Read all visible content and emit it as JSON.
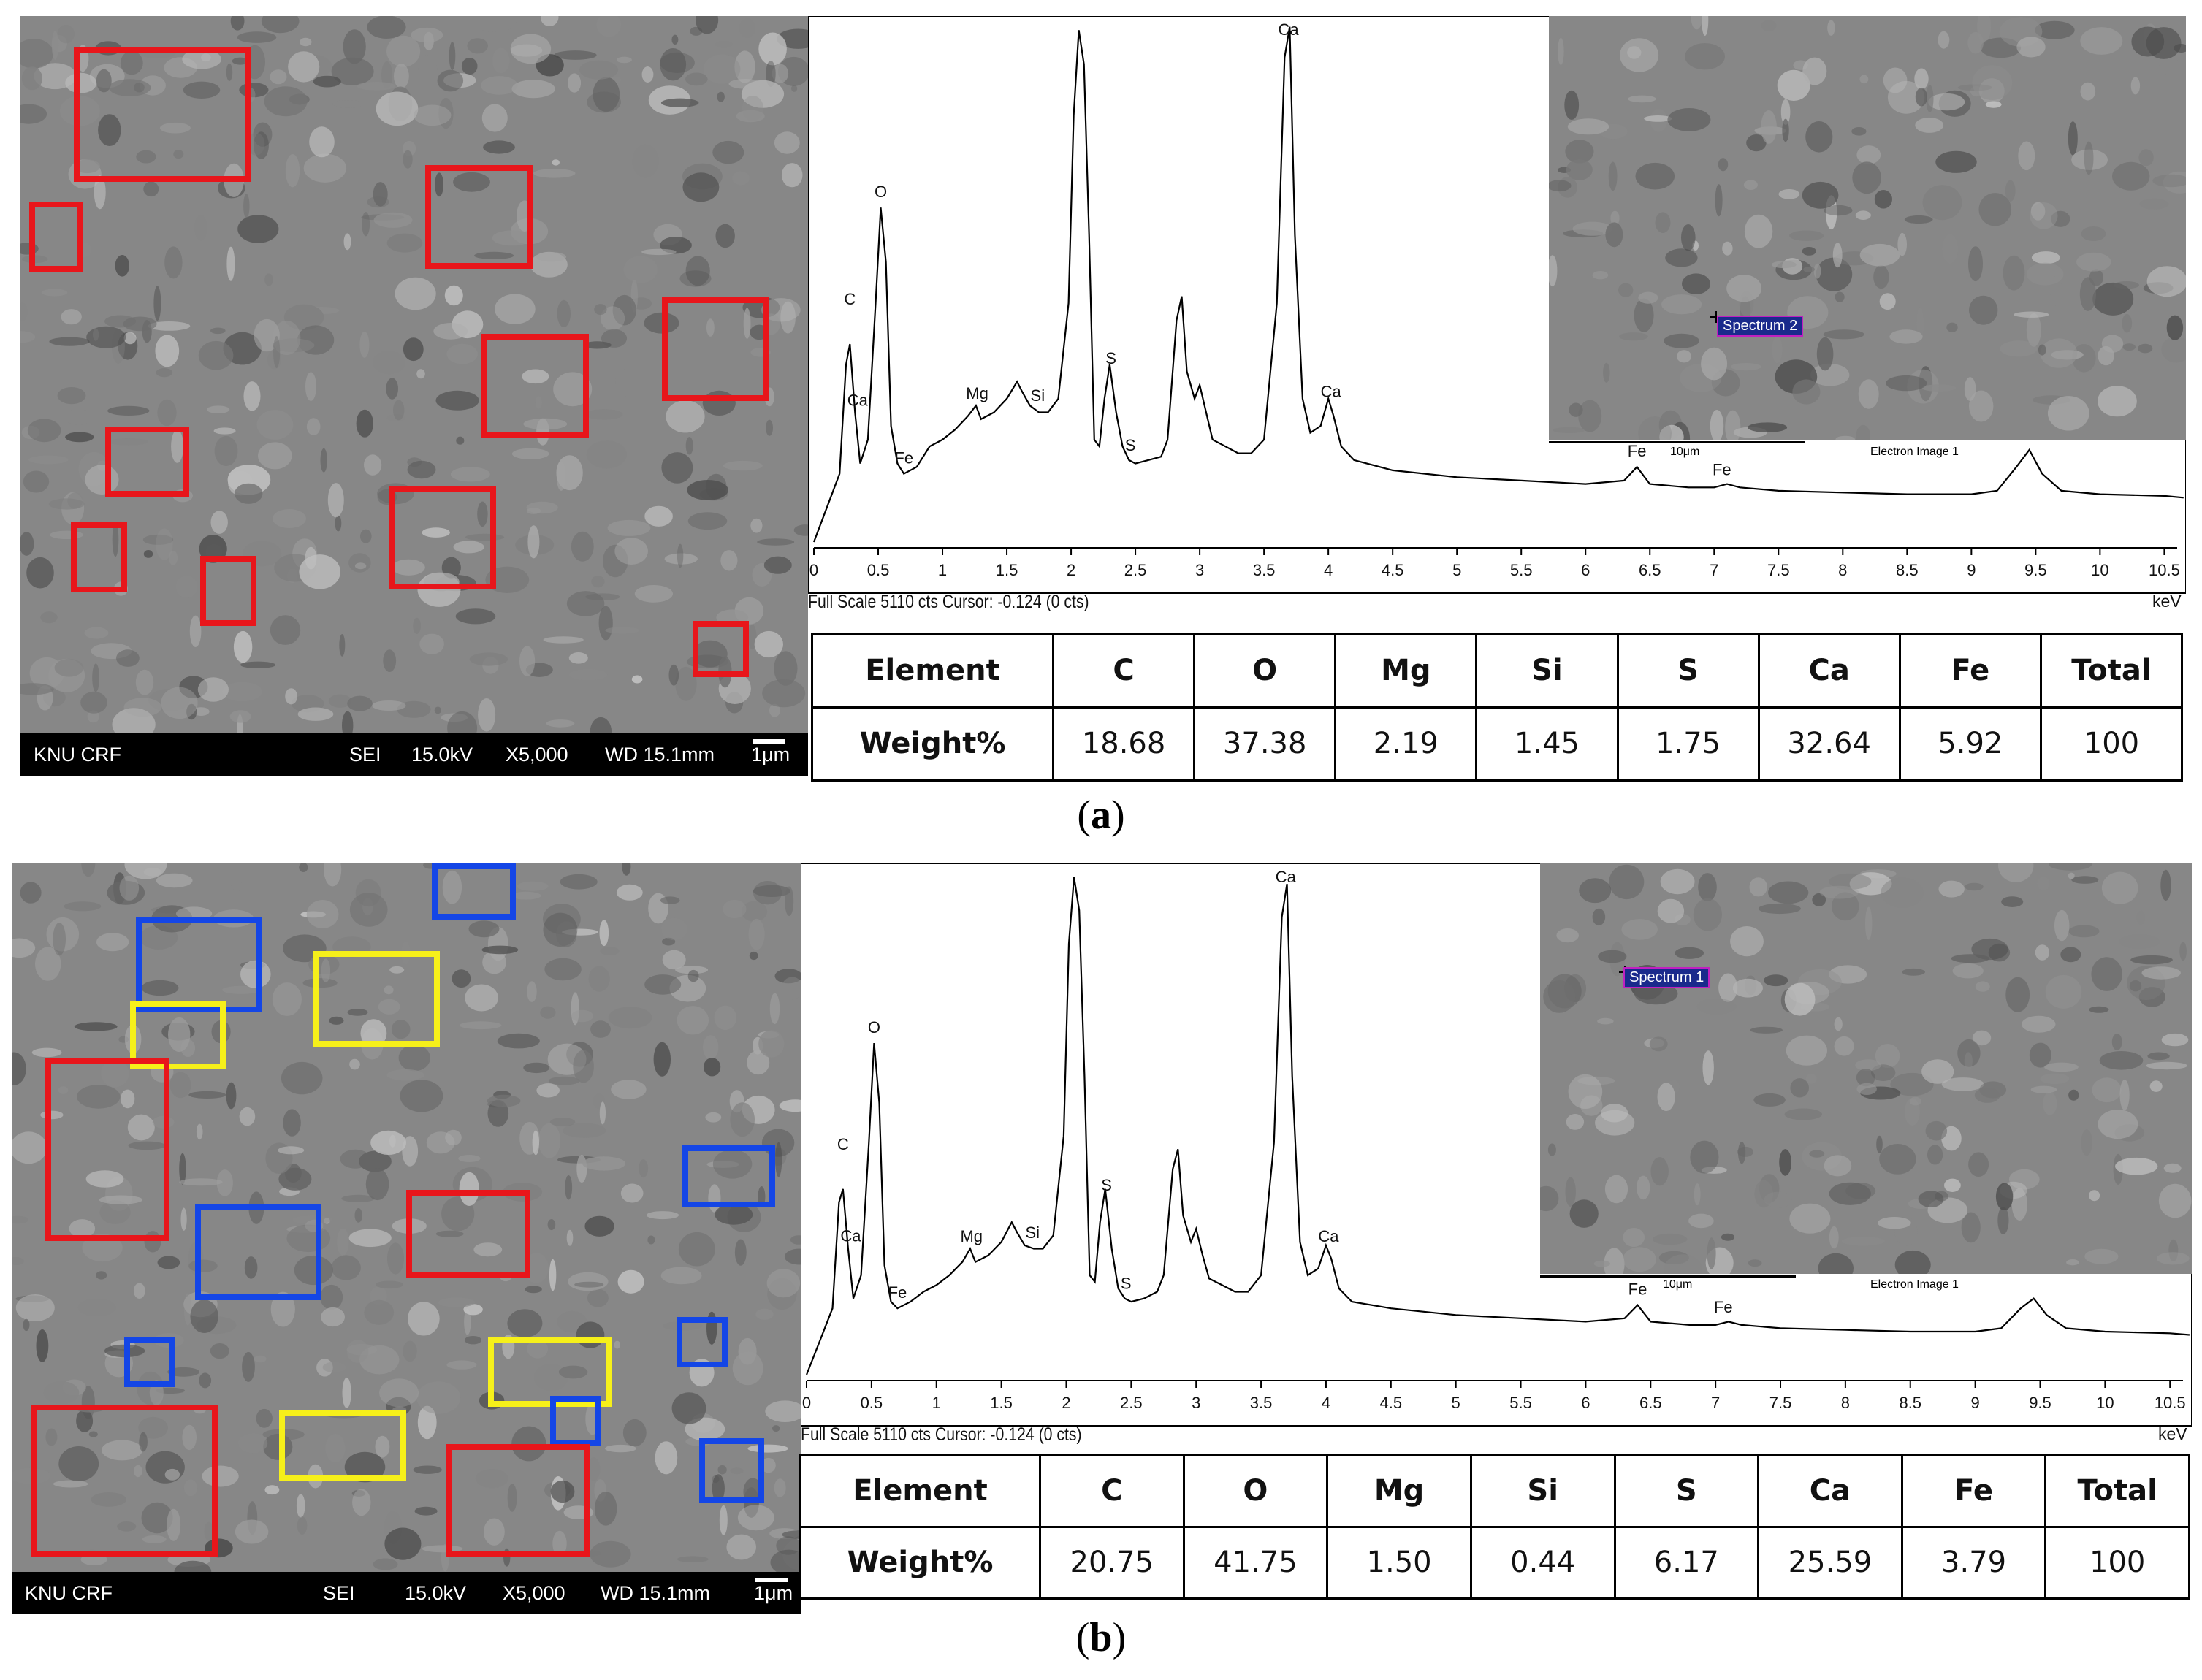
{
  "panels": [
    {
      "label_open": "(",
      "label_letter": "a",
      "label_close": ")",
      "sem_bar": {
        "lab": "KNU CRF",
        "mode": "SEI",
        "voltage": "15.0kV",
        "magnification": "X5,000",
        "wd": "WD 15.1mm",
        "scale": "1μm"
      },
      "boxes": [
        {
          "color": "red"
        },
        {
          "color": "red"
        },
        {
          "color": "red"
        },
        {
          "color": "red"
        },
        {
          "color": "red"
        },
        {
          "color": "red"
        },
        {
          "color": "red"
        },
        {
          "color": "red"
        },
        {
          "color": "red"
        },
        {
          "color": "red"
        },
        {
          "color": "red"
        }
      ],
      "chart_data": {
        "type": "line",
        "xlabel": "keV",
        "xlim": [
          0,
          10.6
        ],
        "x_ticks": [
          "0",
          "0.5",
          "1",
          "1.5",
          "2",
          "2.5",
          "3",
          "3.5",
          "4",
          "4.5",
          "5",
          "5.5",
          "6",
          "6.5",
          "7",
          "7.5",
          "8",
          "8.5",
          "9",
          "9.5",
          "10",
          "10.5"
        ],
        "series": [
          {
            "x": [
              0,
              0.1,
              0.2,
              0.25,
              0.28,
              0.32,
              0.36,
              0.42,
              0.48,
              0.52,
              0.56,
              0.6,
              0.65,
              0.7,
              0.8,
              0.9,
              1.0,
              1.1,
              1.2,
              1.26,
              1.3,
              1.4,
              1.5,
              1.58,
              1.62,
              1.68,
              1.75,
              1.82,
              1.9,
              1.98,
              2.02,
              2.06,
              2.1,
              2.14,
              2.18,
              2.22,
              2.26,
              2.3,
              2.35,
              2.4,
              2.45,
              2.5,
              2.6,
              2.7,
              2.75,
              2.82,
              2.86,
              2.9,
              2.96,
              3.0,
              3.05,
              3.1,
              3.2,
              3.3,
              3.4,
              3.5,
              3.6,
              3.66,
              3.7,
              3.74,
              3.8,
              3.86,
              3.94,
              4.0,
              4.04,
              4.1,
              4.2,
              4.5,
              5,
              5.5,
              6,
              6.3,
              6.4,
              6.5,
              6.8,
              7.0,
              7.1,
              7.2,
              7.5,
              8,
              8.5,
              9,
              9.2,
              9.35,
              9.45,
              9.55,
              9.7,
              10,
              10.5,
              10.65
            ],
            "y": [
              0,
              100,
              200,
              520,
              580,
              380,
              230,
              300,
              700,
              980,
              820,
              340,
              230,
              200,
              220,
              280,
              300,
              330,
              370,
              400,
              360,
              380,
              420,
              470,
              440,
              400,
              380,
              380,
              420,
              700,
              1250,
              1500,
              1400,
              900,
              300,
              280,
              420,
              520,
              380,
              280,
              240,
              230,
              240,
              250,
              300,
              650,
              720,
              500,
              420,
              460,
              380,
              300,
              280,
              260,
              260,
              300,
              700,
              1420,
              1510,
              900,
              420,
              320,
              340,
              420,
              370,
              280,
              240,
              210,
              190,
              180,
              170,
              180,
              220,
              170,
              160,
              160,
              170,
              160,
              150,
              145,
              140,
              140,
              150,
              220,
              270,
              200,
              150,
              140,
              135,
              130
            ]
          }
        ],
        "peak_labels": [
          {
            "text": "C",
            "x": 0.28
          },
          {
            "text": "Ca",
            "x": 0.34
          },
          {
            "text": "O",
            "x": 0.52
          },
          {
            "text": "Fe",
            "x": 0.7
          },
          {
            "text": "Mg",
            "x": 1.27
          },
          {
            "text": "Si",
            "x": 1.74
          },
          {
            "text": "S",
            "x": 2.31
          },
          {
            "text": "S",
            "x": 2.46
          },
          {
            "text": "Ca",
            "x": 3.69
          },
          {
            "text": "Ca",
            "x": 4.02
          },
          {
            "text": "Fe",
            "x": 6.4
          },
          {
            "text": "Fe",
            "x": 7.06
          }
        ]
      },
      "full_scale_text": "Full Scale 5110 cts Cursor: -0.124 (0 cts)",
      "kev_label": "keV",
      "inset": {
        "spectrum_tag": "Spectrum 2",
        "scale": "10μm",
        "caption": "Electron Image 1"
      },
      "table": {
        "header": [
          "Element",
          "C",
          "O",
          "Mg",
          "Si",
          "S",
          "Ca",
          "Fe",
          "Total"
        ],
        "row": [
          "Weight%",
          "18.68",
          "37.38",
          "2.19",
          "1.45",
          "1.75",
          "32.64",
          "5.92",
          "100"
        ]
      }
    },
    {
      "label_open": "(",
      "label_letter": "b",
      "label_close": ")",
      "sem_bar": {
        "lab": "KNU CRF",
        "mode": "SEI",
        "voltage": "15.0kV",
        "magnification": "X5,000",
        "wd": "WD 15.1mm",
        "scale": "1μm"
      },
      "boxes": [
        {
          "color": "blue"
        },
        {
          "color": "blue"
        },
        {
          "color": "yellow"
        },
        {
          "color": "yellow"
        },
        {
          "color": "red"
        },
        {
          "color": "blue"
        },
        {
          "color": "blue"
        },
        {
          "color": "red"
        },
        {
          "color": "blue"
        },
        {
          "color": "blue"
        },
        {
          "color": "yellow"
        },
        {
          "color": "red"
        },
        {
          "color": "yellow"
        },
        {
          "color": "blue"
        },
        {
          "color": "red"
        },
        {
          "color": "blue"
        }
      ],
      "chart_data": {
        "type": "line",
        "xlabel": "keV",
        "xlim": [
          0,
          10.6
        ],
        "x_ticks": [
          "0",
          "0.5",
          "1",
          "1.5",
          "2",
          "2.5",
          "3",
          "3.5",
          "4",
          "4.5",
          "5",
          "5.5",
          "6",
          "6.5",
          "7",
          "7.5",
          "8",
          "8.5",
          "9",
          "9.5",
          "10",
          "10.5"
        ],
        "series": [
          {
            "x": [
              0,
              0.1,
              0.2,
              0.25,
              0.28,
              0.32,
              0.36,
              0.42,
              0.48,
              0.52,
              0.56,
              0.6,
              0.65,
              0.7,
              0.8,
              0.9,
              1.0,
              1.1,
              1.2,
              1.26,
              1.3,
              1.4,
              1.5,
              1.58,
              1.62,
              1.68,
              1.75,
              1.82,
              1.9,
              1.98,
              2.02,
              2.06,
              2.1,
              2.14,
              2.18,
              2.22,
              2.26,
              2.3,
              2.35,
              2.4,
              2.45,
              2.5,
              2.6,
              2.7,
              2.75,
              2.82,
              2.86,
              2.9,
              2.96,
              3.0,
              3.05,
              3.1,
              3.2,
              3.3,
              3.4,
              3.5,
              3.6,
              3.66,
              3.7,
              3.74,
              3.8,
              3.86,
              3.94,
              4.0,
              4.04,
              4.1,
              4.2,
              4.5,
              5,
              5.5,
              6,
              6.3,
              6.4,
              6.5,
              6.8,
              7.0,
              7.1,
              7.2,
              7.5,
              8,
              8.5,
              9,
              9.2,
              9.35,
              9.45,
              9.55,
              9.7,
              10,
              10.5,
              10.65
            ],
            "y": [
              0,
              100,
              200,
              520,
              560,
              380,
              230,
              300,
              700,
              1000,
              820,
              330,
              220,
              200,
              220,
              250,
              270,
              300,
              340,
              380,
              340,
              360,
              400,
              460,
              430,
              390,
              380,
              380,
              420,
              720,
              1300,
              1500,
              1400,
              900,
              300,
              280,
              460,
              560,
              380,
              260,
              230,
              220,
              230,
              250,
              300,
              620,
              680,
              480,
              400,
              440,
              360,
              290,
              270,
              250,
              250,
              300,
              700,
              1380,
              1480,
              900,
              400,
              300,
              320,
              390,
              350,
              260,
              220,
              200,
              180,
              170,
              160,
              170,
              210,
              160,
              150,
              150,
              160,
              150,
              140,
              135,
              130,
              130,
              140,
              200,
              230,
              180,
              140,
              130,
              125,
              120
            ]
          }
        ],
        "peak_labels": [
          {
            "text": "C",
            "x": 0.28
          },
          {
            "text": "Ca",
            "x": 0.34
          },
          {
            "text": "O",
            "x": 0.52
          },
          {
            "text": "Fe",
            "x": 0.7
          },
          {
            "text": "Mg",
            "x": 1.27
          },
          {
            "text": "Si",
            "x": 1.74
          },
          {
            "text": "S",
            "x": 2.31
          },
          {
            "text": "S",
            "x": 2.46
          },
          {
            "text": "Ca",
            "x": 3.69
          },
          {
            "text": "Ca",
            "x": 4.02
          },
          {
            "text": "Fe",
            "x": 6.4
          },
          {
            "text": "Fe",
            "x": 7.06
          }
        ]
      },
      "full_scale_text": "Full Scale 5110 cts Cursor: -0.124  (0 cts)",
      "kev_label": "keV",
      "inset": {
        "spectrum_tag": "Spectrum 1",
        "scale": "10μm",
        "caption": "Electron Image 1"
      },
      "table": {
        "header": [
          "Element",
          "C",
          "O",
          "Mg",
          "Si",
          "S",
          "Ca",
          "Fe",
          "Total"
        ],
        "row": [
          "Weight%",
          "20.75",
          "41.75",
          "1.50",
          "0.44",
          "6.17",
          "25.59",
          "3.79",
          "100"
        ]
      }
    }
  ]
}
